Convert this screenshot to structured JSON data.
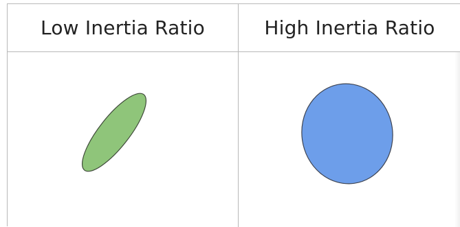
{
  "table": {
    "headers": [
      "Low Inertia Ratio",
      "High Inertia Ratio"
    ]
  },
  "shapes": [
    {
      "name": "low-inertia-ellipse",
      "fill": "#8fc57a",
      "stroke": "#3f4a3a"
    },
    {
      "name": "high-inertia-ellipse",
      "fill": "#6d9eea",
      "stroke": "#3e4452"
    }
  ]
}
